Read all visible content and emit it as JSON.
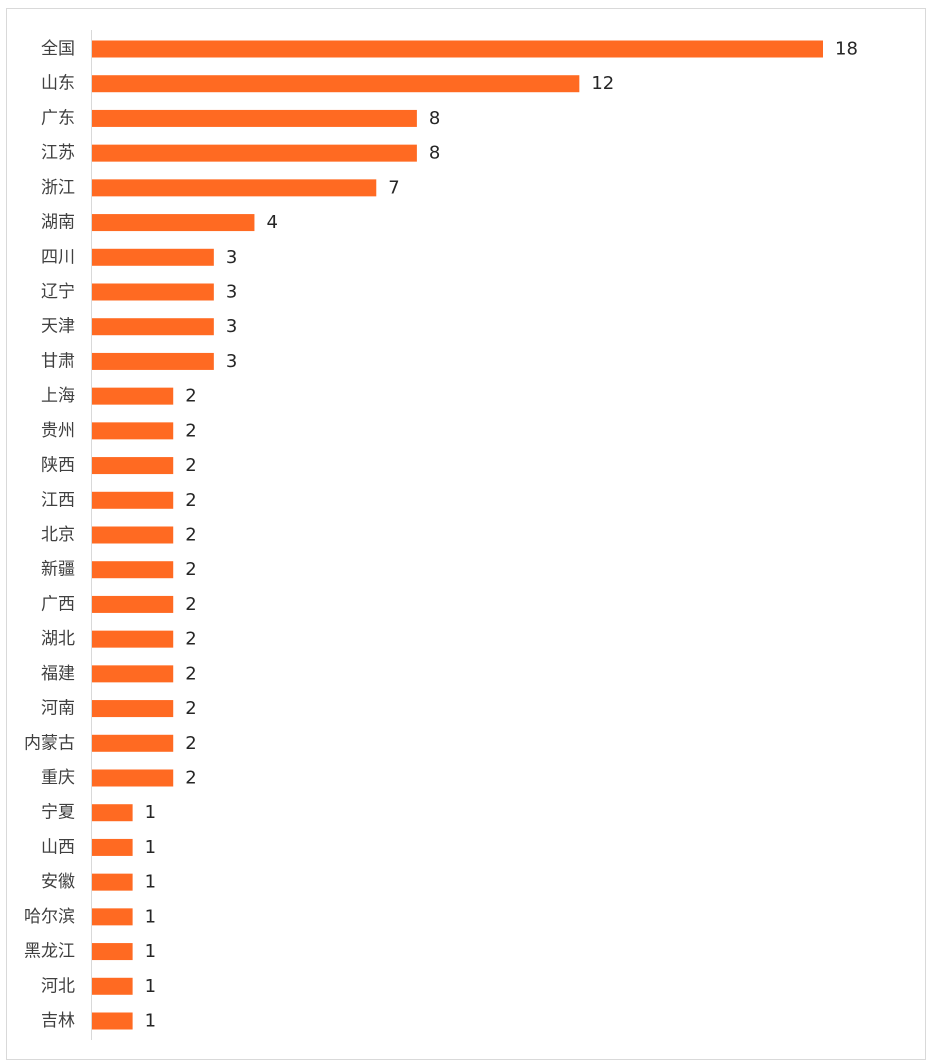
{
  "chart_data": {
    "type": "bar",
    "orientation": "horizontal",
    "categories": [
      "全国",
      "山东",
      "广东",
      "江苏",
      "浙江",
      "湖南",
      "四川",
      "辽宁",
      "天津",
      "甘肃",
      "上海",
      "贵州",
      "陕西",
      "江西",
      "北京",
      "新疆",
      "广西",
      "湖北",
      "福建",
      "河南",
      "内蒙古",
      "重庆",
      "宁夏",
      "山西",
      "安徽",
      "哈尔滨",
      "黑龙江",
      "河北",
      "吉林"
    ],
    "values": [
      18,
      12,
      8,
      8,
      7,
      4,
      3,
      3,
      3,
      3,
      2,
      2,
      2,
      2,
      2,
      2,
      2,
      2,
      2,
      2,
      2,
      2,
      1,
      1,
      1,
      1,
      1,
      1,
      1
    ],
    "title": "",
    "xlabel": "",
    "ylabel": "",
    "xlim": [
      0,
      18
    ],
    "grid": false,
    "legend": "none",
    "bar_color": "#FF6A22",
    "data_labels": true
  }
}
